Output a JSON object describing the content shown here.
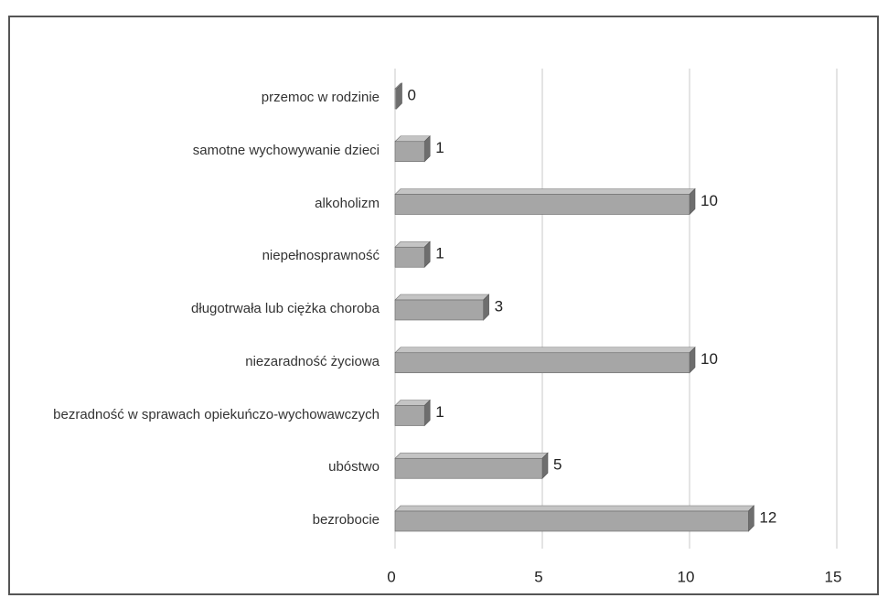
{
  "chart_data": {
    "type": "bar",
    "orientation": "horizontal",
    "categories": [
      "przemoc w rodzinie",
      "samotne wychowywanie dzieci",
      "alkoholizm",
      "niepełnosprawność",
      "długotrwała lub ciężka choroba",
      "niezaradność życiowa",
      "bezradność w sprawach opiekuńczo-wychowawczych",
      "ubóstwo",
      "bezrobocie"
    ],
    "values": [
      0,
      1,
      10,
      1,
      3,
      10,
      1,
      5,
      12
    ],
    "color": "#a6a6a6",
    "xlim": [
      0,
      15
    ],
    "xticks": [
      0,
      5,
      10,
      15
    ],
    "grid": true
  }
}
